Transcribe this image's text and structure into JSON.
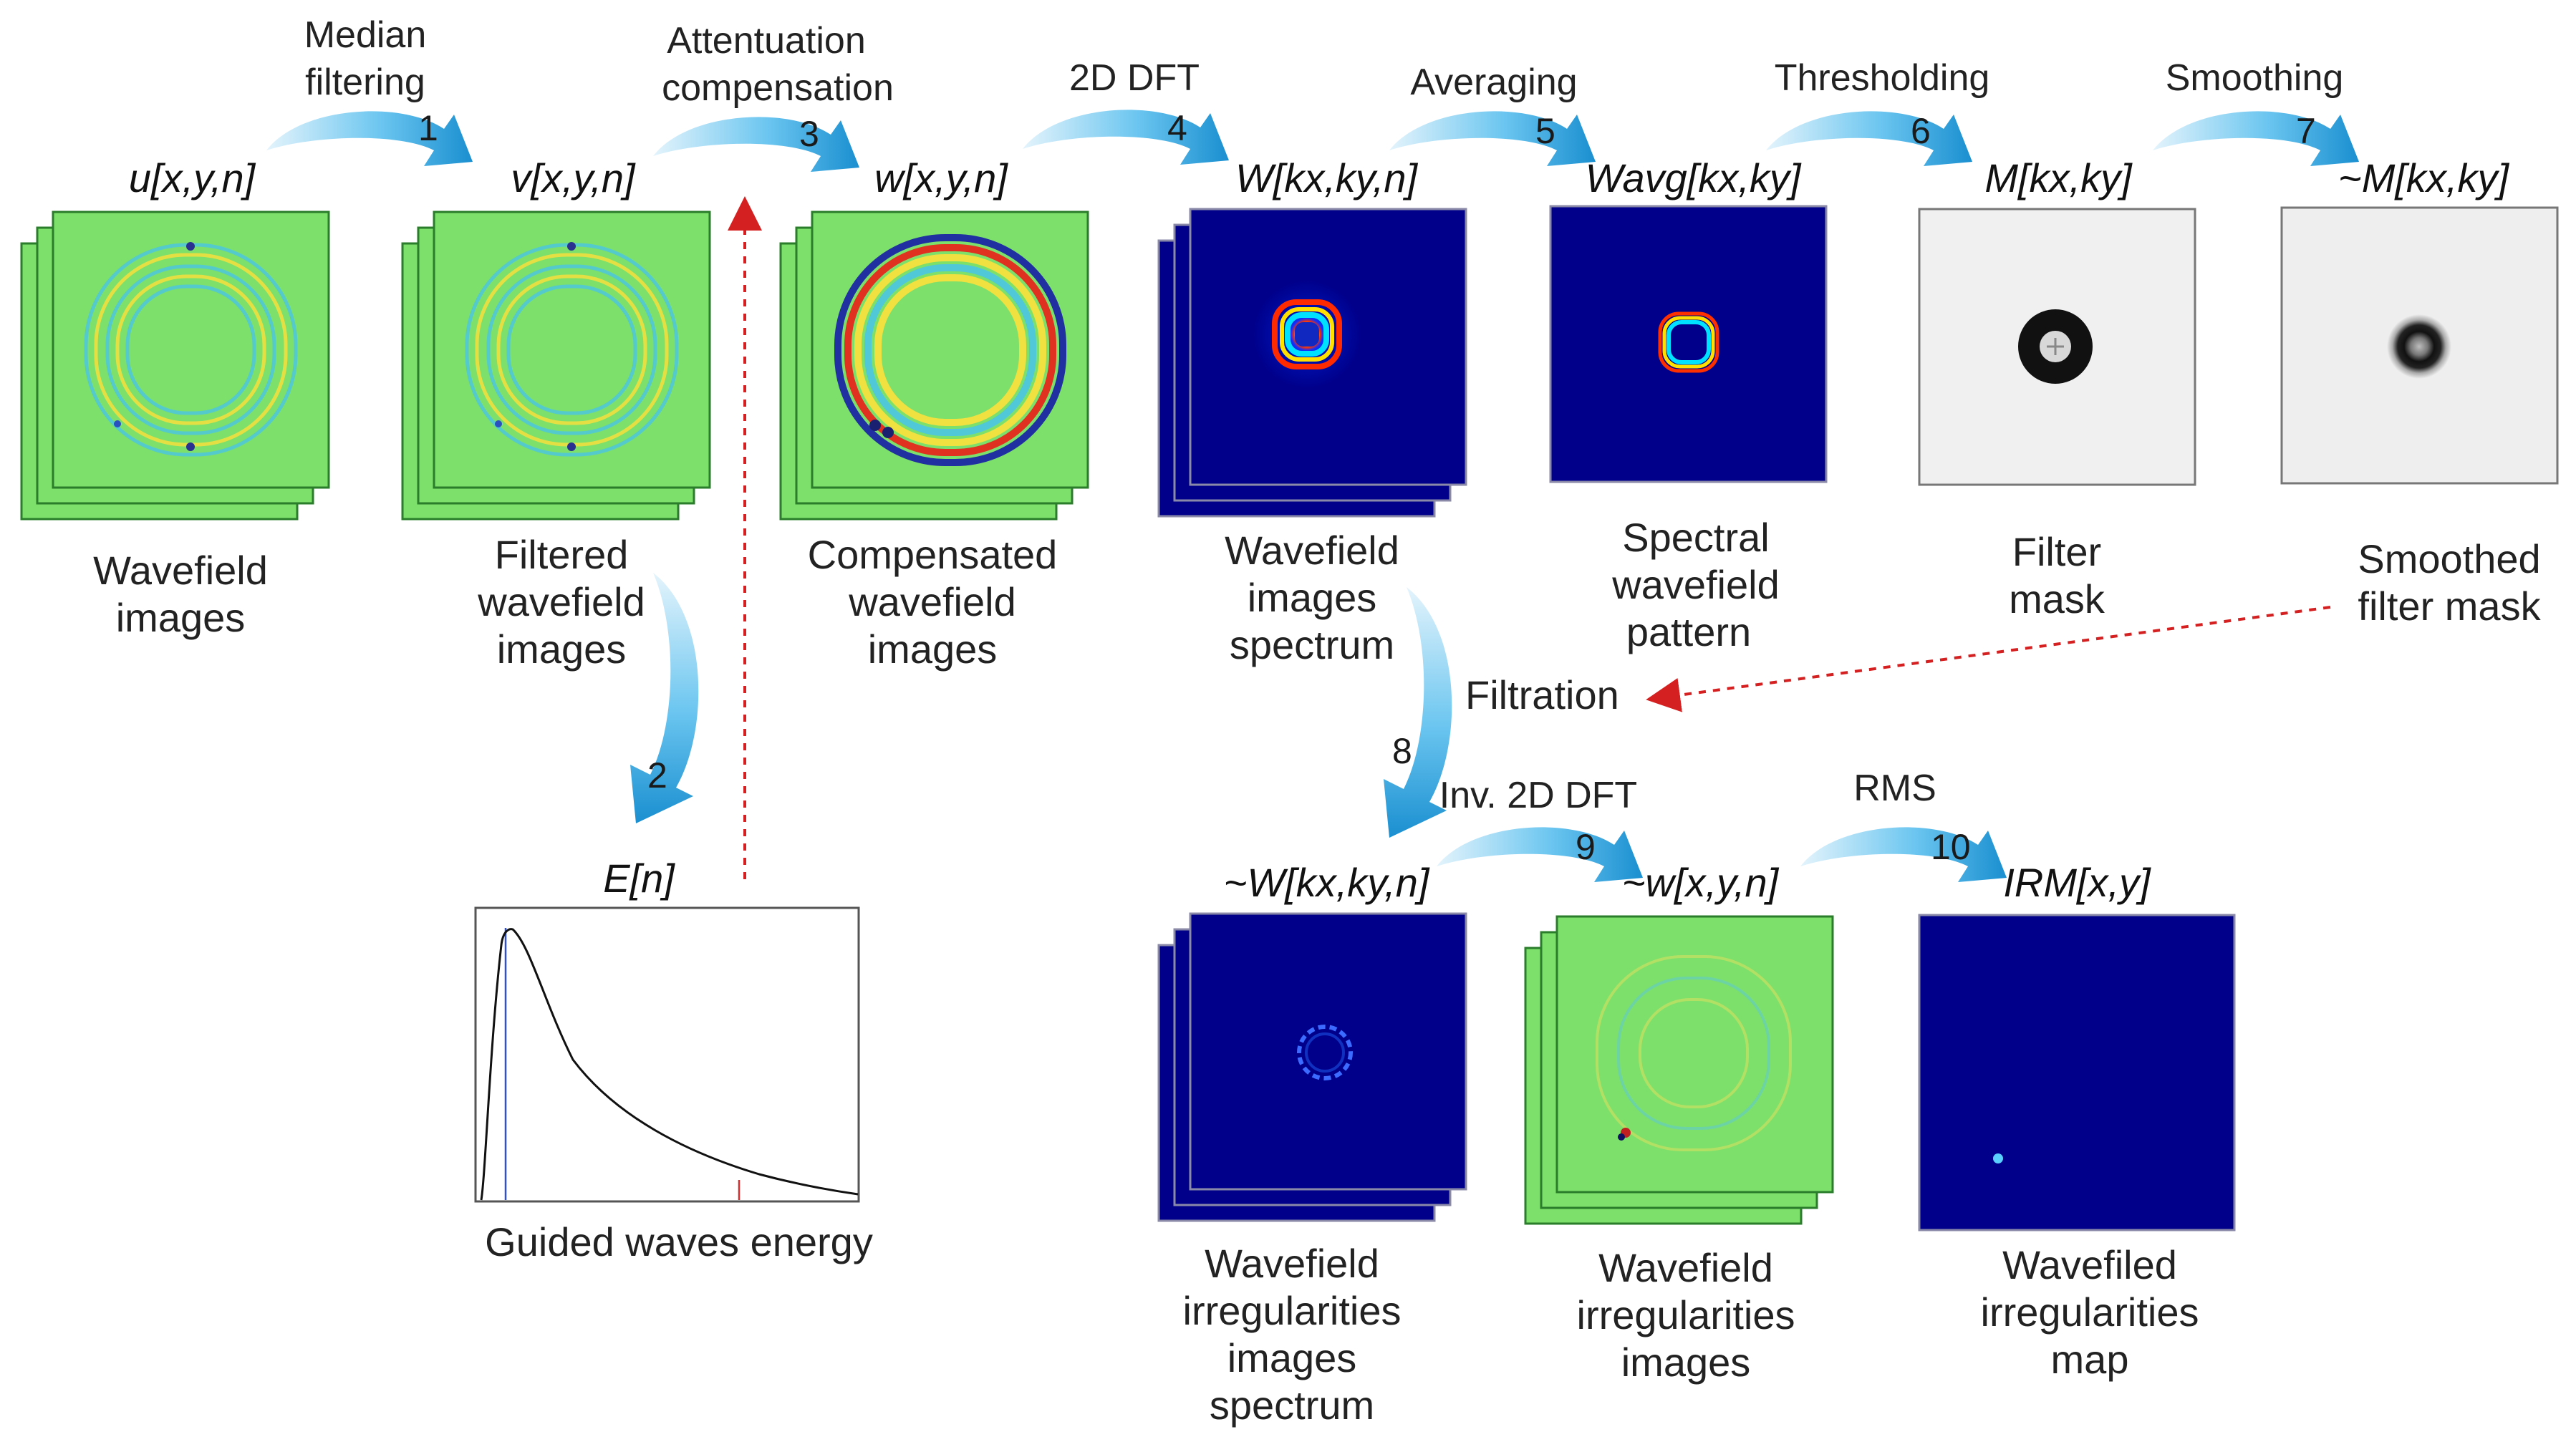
{
  "colors": {
    "wave_green": "#7ce06a",
    "spectrum_blue": "#00008b",
    "mask_gray": "#f0f0f0",
    "arrow_blue": "#2aa0dc",
    "dashed_red": "#d42020"
  },
  "steps": [
    {
      "num": "1",
      "label_lines": [
        "Median",
        "filtering"
      ]
    },
    {
      "num": "2",
      "label_lines": []
    },
    {
      "num": "3",
      "label_lines": [
        "Attentuation",
        "compensation"
      ]
    },
    {
      "num": "4",
      "label_lines": [
        "2D DFT"
      ]
    },
    {
      "num": "5",
      "label_lines": [
        "Averaging"
      ]
    },
    {
      "num": "6",
      "label_lines": [
        "Thresholding"
      ]
    },
    {
      "num": "7",
      "label_lines": [
        "Smoothing"
      ]
    },
    {
      "num": "8",
      "label_lines": []
    },
    {
      "num": "9",
      "label_lines": [
        "Inv. 2D DFT"
      ]
    },
    {
      "num": "10",
      "label_lines": [
        "RMS"
      ]
    }
  ],
  "nodes": [
    {
      "symbol": "u[x,y,n]",
      "caption_lines": [
        "Wavefield",
        "images"
      ]
    },
    {
      "symbol": "v[x,y,n]",
      "caption_lines": [
        "Filtered",
        "wavefield",
        "images"
      ]
    },
    {
      "symbol": "w[x,y,n]",
      "caption_lines": [
        "Compensated",
        "wavefield",
        "images"
      ]
    },
    {
      "symbol": "W[kx,ky,n]",
      "caption_lines": [
        "Wavefield",
        "images",
        "spectrum"
      ]
    },
    {
      "symbol": "Wavg[kx,ky]",
      "caption_lines": [
        "Spectral",
        "wavefield",
        "pattern"
      ]
    },
    {
      "symbol": "M[kx,ky]",
      "caption_lines": [
        "Filter",
        "mask"
      ]
    },
    {
      "symbol": "~M[kx,ky]",
      "caption_lines": [
        "Smoothed",
        "filter mask"
      ]
    },
    {
      "symbol": "E[n]",
      "caption_lines": [
        "Guided waves energy"
      ]
    },
    {
      "symbol": "~W[kx,ky,n]",
      "caption_lines": [
        "Wavefield",
        "irregularities",
        "images",
        "spectrum"
      ]
    },
    {
      "symbol": "~w[x,y,n]",
      "caption_lines": [
        "Wavefield",
        "irregularities",
        "images"
      ]
    },
    {
      "symbol": "IRM[x,y]",
      "caption_lines": [
        "Wavefiled",
        "irregularities",
        "map"
      ]
    }
  ],
  "filtration_label": "Filtration"
}
